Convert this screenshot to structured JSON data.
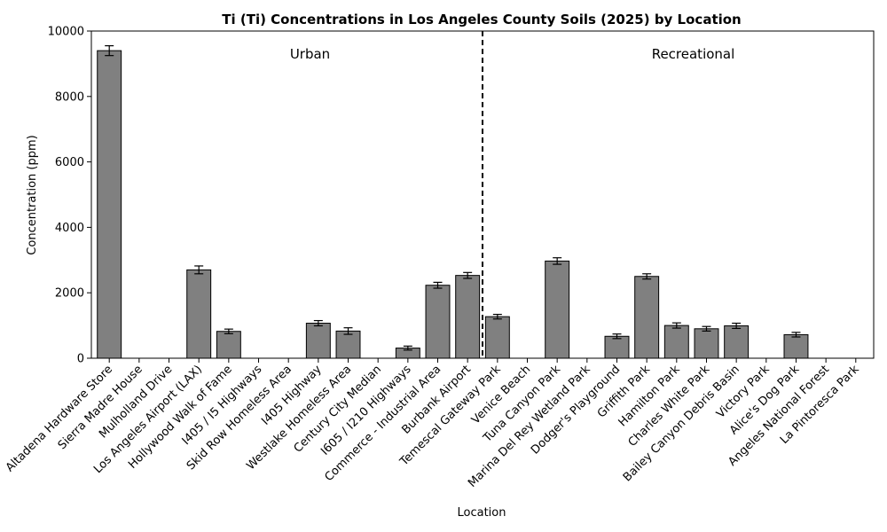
{
  "chart_data": {
    "type": "bar",
    "title": "Ti (Ti) Concentrations in Los Angeles County Soils (2025) by Location",
    "xlabel": "Location",
    "ylabel": "Concentration (ppm)",
    "ylim": [
      0,
      10000
    ],
    "yticks": [
      0,
      2000,
      4000,
      6000,
      8000,
      10000
    ],
    "categories": [
      "Altadena Hardware Store",
      "Sierra Madre House",
      "Mulholland Drive",
      "Los Angeles Airport (LAX)",
      "Hollywood Walk of Fame",
      "I405 / I5 Highways",
      "Skid Row Homeless Area",
      "I405 Highway",
      "Westlake Homeless Area",
      "Century City Median",
      "I605 / I210 Highways",
      "Commerce - Industrial Area",
      "Burbank Airport",
      "Temescal Gateway Park",
      "Venice Beach",
      "Tuna Canyon Park",
      "Marina Del Rey Wetland Park",
      "Dodger's Playground",
      "Griffith Park",
      "Hamilton Park",
      "Charles White Park",
      "Bailey Canyon Debris Basin",
      "Victory Park",
      "Alice's Dog Park",
      "Angeles National Forest",
      "La Pintoresca Park"
    ],
    "values": [
      9400,
      null,
      null,
      2700,
      820,
      null,
      null,
      1070,
      830,
      null,
      310,
      2230,
      2530,
      1270,
      null,
      2970,
      null,
      670,
      2500,
      1000,
      900,
      990,
      null,
      720,
      null,
      null
    ],
    "errors": [
      150,
      null,
      null,
      120,
      70,
      null,
      null,
      80,
      100,
      null,
      60,
      90,
      90,
      70,
      null,
      100,
      null,
      70,
      80,
      80,
      70,
      80,
      null,
      70,
      null,
      null
    ],
    "bar_color": "#808080",
    "divider_after_index": 12,
    "regions": [
      "Urban",
      "Recreational"
    ],
    "grid": false
  }
}
